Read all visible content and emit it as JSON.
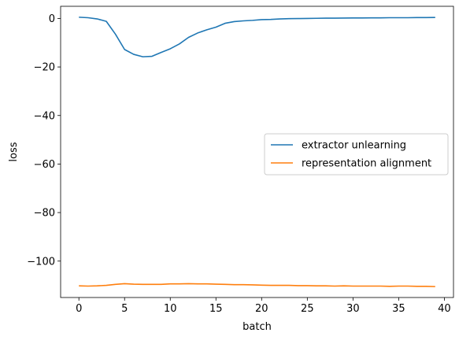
{
  "chart_data": {
    "type": "line",
    "title": "",
    "xlabel": "batch",
    "ylabel": "loss",
    "xlim": [
      -2,
      41
    ],
    "ylim": [
      -115,
      5
    ],
    "xticks": [
      0,
      5,
      10,
      15,
      20,
      25,
      30,
      35,
      40
    ],
    "xtick_labels": [
      "0",
      "5",
      "10",
      "15",
      "20",
      "25",
      "30",
      "35",
      "40"
    ],
    "yticks": [
      0,
      -20,
      -40,
      -60,
      -80,
      -100
    ],
    "ytick_labels": [
      "0",
      "−20",
      "−40",
      "−60",
      "−80",
      "−100"
    ],
    "grid": false,
    "legend_position": "center-right",
    "series": [
      {
        "name": "extractor unlearning",
        "color": "#1f77b4",
        "x": [
          0,
          1,
          2,
          3,
          4,
          5,
          6,
          7,
          8,
          9,
          10,
          11,
          12,
          13,
          14,
          15,
          16,
          17,
          18,
          19,
          20,
          21,
          22,
          23,
          24,
          25,
          26,
          27,
          28,
          29,
          30,
          31,
          32,
          33,
          34,
          35,
          36,
          37,
          38,
          39
        ],
        "y": [
          0.5,
          0.3,
          -0.2,
          -1.2,
          -6.5,
          -12.8,
          -14.8,
          -15.8,
          -15.6,
          -14.0,
          -12.5,
          -10.5,
          -7.8,
          -6.0,
          -4.7,
          -3.6,
          -2.0,
          -1.3,
          -1.0,
          -0.8,
          -0.5,
          -0.4,
          -0.2,
          -0.1,
          -0.05,
          0.0,
          0.05,
          0.1,
          0.1,
          0.15,
          0.2,
          0.2,
          0.25,
          0.25,
          0.3,
          0.3,
          0.3,
          0.35,
          0.35,
          0.4
        ]
      },
      {
        "name": "representation alignment",
        "color": "#ff7f0e",
        "x": [
          0,
          1,
          2,
          3,
          4,
          5,
          6,
          7,
          8,
          9,
          10,
          11,
          12,
          13,
          14,
          15,
          16,
          17,
          18,
          19,
          20,
          21,
          22,
          23,
          24,
          25,
          26,
          27,
          28,
          29,
          30,
          31,
          32,
          33,
          34,
          35,
          36,
          37,
          38,
          39
        ],
        "y": [
          -110.2,
          -110.3,
          -110.2,
          -110.0,
          -109.6,
          -109.3,
          -109.5,
          -109.6,
          -109.6,
          -109.6,
          -109.4,
          -109.4,
          -109.3,
          -109.4,
          -109.4,
          -109.5,
          -109.6,
          -109.7,
          -109.7,
          -109.8,
          -109.9,
          -110.0,
          -110.0,
          -110.0,
          -110.1,
          -110.1,
          -110.2,
          -110.2,
          -110.3,
          -110.2,
          -110.3,
          -110.3,
          -110.3,
          -110.3,
          -110.4,
          -110.3,
          -110.3,
          -110.4,
          -110.4,
          -110.5
        ]
      }
    ]
  }
}
